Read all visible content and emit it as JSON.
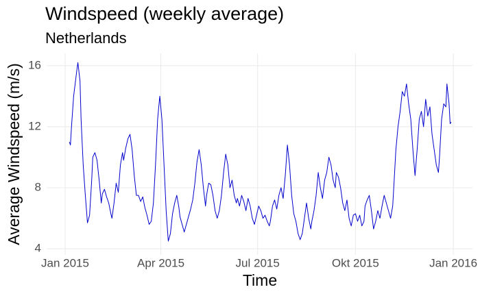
{
  "chart_data": {
    "type": "line",
    "title": "Windspeed (weekly average)",
    "subtitle": "Netherlands",
    "x_label": "Time",
    "y_label": "Average Windspeed (m/s)",
    "grid": true,
    "xlim": [
      -17,
      383
    ],
    "xticks": [
      {
        "value": 0,
        "label": "Jan 2015"
      },
      {
        "value": 90,
        "label": "Apr 2015"
      },
      {
        "value": 181,
        "label": "Jul 2015"
      },
      {
        "value": 273,
        "label": "Okt 2015"
      },
      {
        "value": 365,
        "label": "Jan 2016"
      }
    ],
    "ylim": [
      3.6,
      16.8
    ],
    "yticks": [
      4,
      8,
      12,
      16
    ],
    "x": [
      4,
      5,
      6,
      8,
      11,
      12,
      14,
      15,
      17,
      19,
      21,
      23,
      25,
      26,
      28,
      30,
      32,
      34,
      35,
      37,
      39,
      41,
      43,
      44,
      46,
      48,
      50,
      52,
      54,
      55,
      57,
      59,
      61,
      63,
      65,
      67,
      69,
      71,
      73,
      75,
      77,
      79,
      81,
      83,
      85,
      87,
      89,
      91,
      93,
      95,
      97,
      99,
      101,
      103,
      105,
      107,
      108,
      110,
      112,
      114,
      116,
      118,
      120,
      122,
      124,
      126,
      128,
      130,
      132,
      133,
      135,
      137,
      139,
      141,
      143,
      145,
      147,
      149,
      151,
      153,
      155,
      157,
      159,
      161,
      162,
      164,
      166,
      168,
      170,
      172,
      174,
      176,
      178,
      180,
      182,
      184,
      186,
      188,
      190,
      192,
      193,
      195,
      197,
      199,
      201,
      203,
      205,
      207,
      209,
      211,
      213,
      215,
      217,
      219,
      221,
      223,
      225,
      227,
      229,
      231,
      232,
      234,
      236,
      238,
      240,
      242,
      244,
      246,
      248,
      250,
      252,
      254,
      255,
      257,
      259,
      261,
      263,
      265,
      267,
      269,
      271,
      273,
      275,
      277,
      279,
      281,
      282,
      284,
      286,
      288,
      290,
      292,
      294,
      296,
      298,
      300,
      302,
      304,
      306,
      308,
      309,
      311,
      313,
      315,
      317,
      319,
      321,
      323,
      325,
      327,
      329,
      331,
      333,
      335,
      337,
      339,
      341,
      343,
      345,
      347,
      349,
      351,
      352,
      354,
      356,
      358,
      359,
      361,
      362,
      363
    ],
    "series": [
      {
        "color": "#0000cd",
        "values": [
          11.0,
          10.8,
          12.0,
          14.0,
          15.7,
          16.2,
          15.0,
          12.5,
          9.5,
          7.5,
          5.7,
          6.2,
          8.5,
          10.0,
          10.3,
          9.8,
          8.5,
          7.0,
          7.6,
          7.9,
          7.4,
          7.0,
          6.3,
          6.0,
          7.0,
          8.3,
          7.7,
          9.5,
          10.3,
          9.8,
          10.6,
          11.2,
          11.5,
          10.5,
          8.8,
          7.5,
          7.5,
          7.1,
          7.4,
          6.7,
          6.2,
          5.6,
          5.8,
          7.0,
          9.5,
          12.5,
          14.0,
          12.5,
          9.5,
          6.5,
          4.5,
          5.0,
          6.3,
          7.0,
          7.5,
          6.7,
          6.1,
          5.6,
          5.1,
          5.6,
          6.1,
          6.6,
          7.2,
          8.3,
          9.7,
          10.5,
          9.5,
          8.0,
          6.8,
          7.5,
          8.3,
          8.2,
          7.5,
          6.5,
          6.0,
          6.5,
          7.5,
          9.0,
          10.2,
          9.5,
          8.0,
          8.5,
          7.5,
          7.0,
          7.3,
          6.8,
          7.5,
          7.1,
          6.5,
          7.3,
          6.8,
          6.0,
          5.6,
          6.2,
          6.8,
          6.5,
          6.0,
          6.2,
          5.8,
          5.5,
          5.8,
          6.8,
          7.2,
          6.6,
          7.5,
          8.0,
          7.3,
          8.8,
          10.8,
          9.5,
          7.5,
          6.3,
          5.8,
          5.0,
          4.6,
          5.0,
          6.0,
          7.0,
          6.0,
          5.3,
          5.8,
          6.5,
          7.5,
          9.0,
          8.0,
          7.3,
          8.5,
          9.0,
          10.0,
          9.5,
          8.5,
          8.0,
          9.0,
          8.7,
          8.0,
          7.0,
          6.5,
          7.2,
          6.0,
          5.5,
          6.2,
          6.3,
          5.8,
          6.2,
          5.5,
          5.8,
          6.8,
          7.2,
          7.5,
          6.5,
          5.3,
          5.8,
          6.5,
          6.0,
          6.8,
          7.5,
          7.0,
          6.5,
          6.0,
          6.8,
          8.0,
          10.5,
          12.0,
          13.0,
          14.3,
          14.0,
          14.8,
          13.5,
          12.5,
          10.5,
          8.8,
          10.5,
          12.5,
          13.0,
          12.0,
          13.8,
          12.7,
          13.3,
          11.5,
          10.5,
          9.5,
          9.0,
          10.0,
          12.5,
          13.5,
          13.3,
          14.8,
          13.5,
          12.2,
          12.3
        ]
      }
    ]
  }
}
